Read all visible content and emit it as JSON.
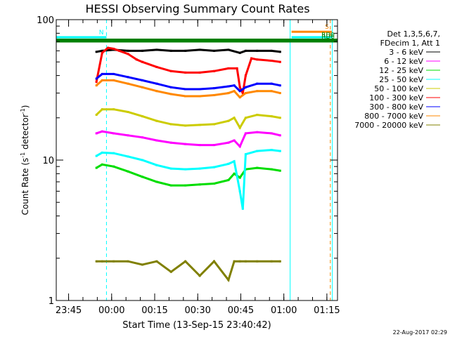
{
  "chart_data": {
    "type": "line",
    "title": "HESSI Observing Summary Count Rates",
    "xlabel": "Start Time (13-Sep-15 23:40:42)",
    "ylabel": "Count Rate (s⁻¹ detector⁻¹)",
    "ylabel_parts": {
      "main": "Count Rate (s",
      "sup1": "-1",
      "mid": " detector",
      "sup2": "-1",
      "end": ")"
    },
    "y_scale": "log",
    "ylim": [
      1,
      100
    ],
    "y_ticks": [
      {
        "value": 1,
        "label": "1"
      },
      {
        "value": 10,
        "label": "10"
      },
      {
        "value": 100,
        "label": "100"
      }
    ],
    "x_unit": "minutes after 23:40:42",
    "xlim": [
      0,
      98
    ],
    "x_ticks": [
      {
        "t": 4.3,
        "label": "23:45"
      },
      {
        "t": 19.3,
        "label": "00:00"
      },
      {
        "t": 34.3,
        "label": "00:15"
      },
      {
        "t": 49.3,
        "label": "00:30"
      },
      {
        "t": 64.3,
        "label": "00:45"
      },
      {
        "t": 79.3,
        "label": "01:00"
      },
      {
        "t": 94.3,
        "label": "01:15"
      }
    ],
    "legend_header": [
      "Det 1,3,5,6,7,",
      "FDecim 1, Att 1"
    ],
    "legend_position": "right",
    "series": [
      {
        "name": "3 - 6 keV",
        "color": "#000000",
        "x": [
          14,
          16,
          20,
          25,
          30,
          35,
          40,
          45,
          50,
          55,
          60,
          64,
          66,
          70,
          75,
          78
        ],
        "y": [
          59,
          60,
          61,
          60,
          60,
          61,
          60,
          60,
          61,
          60,
          61,
          58,
          60,
          60,
          60,
          59
        ]
      },
      {
        "name": "6 - 12 keV",
        "color": "#ff00ff",
        "x": [
          14,
          16,
          20,
          25,
          30,
          35,
          40,
          45,
          50,
          55,
          60,
          62,
          64,
          66,
          70,
          75,
          78
        ],
        "y": [
          15.5,
          16,
          15.5,
          15,
          14.5,
          13.8,
          13.3,
          13,
          12.8,
          12.8,
          13.3,
          13.8,
          12.5,
          15.5,
          15.8,
          15.5,
          15
        ]
      },
      {
        "name": "12 - 25 keV",
        "color": "#00dd00",
        "x": [
          14,
          16,
          20,
          25,
          30,
          35,
          40,
          45,
          50,
          55,
          60,
          62,
          64,
          66,
          70,
          75,
          78
        ],
        "y": [
          8.8,
          9.3,
          9.0,
          8.3,
          7.6,
          7.0,
          6.6,
          6.6,
          6.7,
          6.8,
          7.2,
          8.0,
          7.5,
          8.6,
          8.8,
          8.6,
          8.4
        ]
      },
      {
        "name": "25 - 50 keV",
        "color": "#00ffff",
        "x": [
          14,
          16,
          20,
          25,
          30,
          35,
          40,
          45,
          50,
          55,
          60,
          62,
          64,
          65,
          66,
          70,
          75,
          78
        ],
        "y": [
          10.7,
          11.3,
          11.2,
          10.6,
          10.0,
          9.2,
          8.7,
          8.6,
          8.7,
          8.9,
          9.4,
          9.8,
          6.0,
          4.5,
          11.0,
          11.6,
          11.8,
          11.6
        ]
      },
      {
        "name": "50 - 100 keV",
        "color": "#cccc00",
        "x": [
          14,
          16,
          20,
          25,
          30,
          35,
          40,
          45,
          50,
          55,
          60,
          62,
          64,
          66,
          70,
          75,
          78
        ],
        "y": [
          21,
          23,
          23,
          22,
          20.5,
          19,
          18,
          17.6,
          17.8,
          18,
          19,
          20,
          17,
          20,
          21,
          20.5,
          20
        ]
      },
      {
        "name": "100 - 300 keV",
        "color": "#ff0000",
        "x": [
          14,
          16,
          18,
          20,
          22,
          25,
          28,
          30,
          35,
          40,
          45,
          50,
          55,
          60,
          63,
          64,
          65,
          66,
          68,
          70,
          75,
          78
        ],
        "y": [
          36,
          58,
          63,
          62,
          60,
          57,
          52,
          50,
          46,
          43,
          42,
          42,
          43,
          45,
          45,
          33,
          30,
          40,
          53,
          52,
          51,
          50
        ]
      },
      {
        "name": "300 - 800 keV",
        "color": "#0000ff",
        "x": [
          14,
          16,
          20,
          25,
          30,
          35,
          40,
          45,
          50,
          55,
          60,
          62,
          64,
          66,
          70,
          75,
          78
        ],
        "y": [
          38,
          41,
          41,
          39,
          37,
          35,
          33,
          32,
          32,
          32.5,
          33.5,
          34,
          31,
          33,
          35,
          35,
          34
        ]
      },
      {
        "name": "800 - 7000 keV",
        "color": "#ff8800",
        "x": [
          14,
          16,
          20,
          25,
          30,
          35,
          40,
          45,
          50,
          55,
          60,
          62,
          64,
          66,
          70,
          75,
          78
        ],
        "y": [
          34,
          37,
          37,
          35,
          33,
          31,
          29.5,
          28.5,
          28.5,
          29,
          30,
          31,
          28,
          30,
          31,
          31,
          30
        ]
      },
      {
        "name": "7000 - 20000 keV",
        "color": "#808000",
        "x": [
          14,
          16,
          20,
          25,
          30,
          35,
          40,
          45,
          50,
          55,
          60,
          62,
          64,
          66,
          70,
          75,
          78
        ],
        "y": [
          1.9,
          1.9,
          1.9,
          1.9,
          1.8,
          1.9,
          1.6,
          1.9,
          1.5,
          1.9,
          1.4,
          1.9,
          1.9,
          1.9,
          1.9,
          1.9,
          1.9
        ]
      }
    ],
    "markers": [
      {
        "label": "N",
        "color": "#00ffff",
        "t_start": 0,
        "t_end": 17.5,
        "y": 75
      },
      {
        "label": "S",
        "color": "#ff8800",
        "t_start": 82,
        "t_end": 96,
        "y": 82
      },
      {
        "label": "",
        "color": "#00ffff",
        "t_start": 82,
        "t_end": 96,
        "y": 75
      },
      {
        "label": "RD6",
        "color": "#008000",
        "t_start": 0,
        "t_end": 98,
        "y": 70
      },
      {
        "label": "RD0",
        "color": "#008000",
        "t_start": 0,
        "t_end": 98,
        "y": 72
      }
    ],
    "vlines": [
      {
        "t": 17.5,
        "color": "#00ffff",
        "style": "dashed"
      },
      {
        "t": 81.5,
        "color": "#00ffff",
        "style": "solid"
      },
      {
        "t": 95.5,
        "color": "#ff8800",
        "style": "dashed"
      },
      {
        "t": 96.2,
        "color": "#00ffff",
        "style": "solid"
      }
    ],
    "grid": false
  },
  "footer_timestamp": "22-Aug-2017 02:29",
  "colors": {
    "background": "#ffffff",
    "axes": "#000000"
  }
}
